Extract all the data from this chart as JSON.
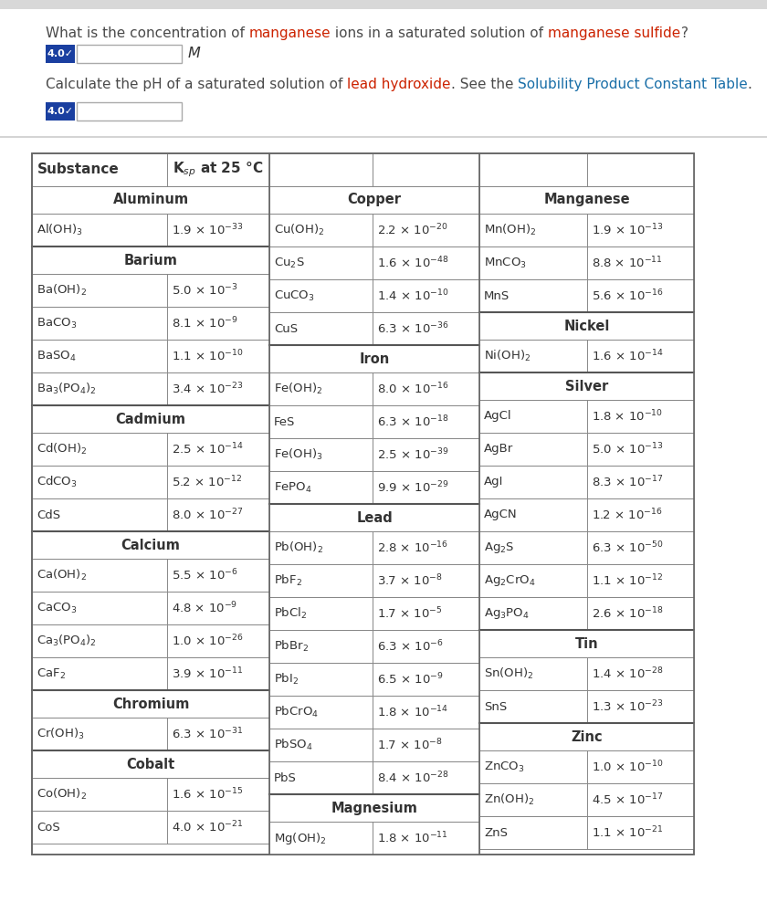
{
  "q1_parts": [
    [
      "What is the concentration of ",
      "#4a4a4a"
    ],
    [
      "manganese",
      "#cc2200"
    ],
    [
      " ions in a saturated solution of ",
      "#4a4a4a"
    ],
    [
      "manganese sulfide",
      "#cc2200"
    ],
    [
      "?",
      "#4a4a4a"
    ]
  ],
  "q2_parts": [
    [
      "Calculate the pH of a saturated solution of ",
      "#4a4a4a"
    ],
    [
      "lead hydroxide",
      "#cc2200"
    ],
    [
      ". See the ",
      "#4a4a4a"
    ],
    [
      "Solubility Product Constant Table",
      "#1a6fa8"
    ],
    [
      ".",
      "#4a4a4a"
    ]
  ],
  "badge_color": "#1a3fa0",
  "badge_text": "4.0✓",
  "col1": {
    "sections": [
      {
        "name": "Aluminum",
        "rows": [
          [
            "Al(OH)$_3$",
            "1.9 × 10$^{-33}$"
          ]
        ]
      },
      {
        "name": "Barium",
        "rows": [
          [
            "Ba(OH)$_2$",
            "5.0 × 10$^{-3}$"
          ],
          [
            "BaCO$_3$",
            "8.1 × 10$^{-9}$"
          ],
          [
            "BaSO$_4$",
            "1.1 × 10$^{-10}$"
          ],
          [
            "Ba$_3$(PO$_4$)$_2$",
            "3.4 × 10$^{-23}$"
          ]
        ]
      },
      {
        "name": "Cadmium",
        "rows": [
          [
            "Cd(OH)$_2$",
            "2.5 × 10$^{-14}$"
          ],
          [
            "CdCO$_3$",
            "5.2 × 10$^{-12}$"
          ],
          [
            "CdS",
            "8.0 × 10$^{-27}$"
          ]
        ]
      },
      {
        "name": "Calcium",
        "rows": [
          [
            "Ca(OH)$_2$",
            "5.5 × 10$^{-6}$"
          ],
          [
            "CaCO$_3$",
            "4.8 × 10$^{-9}$"
          ],
          [
            "Ca$_3$(PO$_4$)$_2$",
            "1.0 × 10$^{-26}$"
          ],
          [
            "CaF$_2$",
            "3.9 × 10$^{-11}$"
          ]
        ]
      },
      {
        "name": "Chromium",
        "rows": [
          [
            "Cr(OH)$_3$",
            "6.3 × 10$^{-31}$"
          ]
        ]
      },
      {
        "name": "Cobalt",
        "rows": [
          [
            "Co(OH)$_2$",
            "1.6 × 10$^{-15}$"
          ],
          [
            "CoS",
            "4.0 × 10$^{-21}$"
          ]
        ]
      }
    ]
  },
  "col2": {
    "sections": [
      {
        "name": "Copper",
        "rows": [
          [
            "Cu(OH)$_2$",
            "2.2 × 10$^{-20}$"
          ],
          [
            "Cu$_2$S",
            "1.6 × 10$^{-48}$"
          ],
          [
            "CuCO$_3$",
            "1.4 × 10$^{-10}$"
          ],
          [
            "CuS",
            "6.3 × 10$^{-36}$"
          ]
        ]
      },
      {
        "name": "Iron",
        "rows": [
          [
            "Fe(OH)$_2$",
            "8.0 × 10$^{-16}$"
          ],
          [
            "FeS",
            "6.3 × 10$^{-18}$"
          ],
          [
            "Fe(OH)$_3$",
            "2.5 × 10$^{-39}$"
          ],
          [
            "FePO$_4$",
            "9.9 × 10$^{-29}$"
          ]
        ]
      },
      {
        "name": "Lead",
        "rows": [
          [
            "Pb(OH)$_2$",
            "2.8 × 10$^{-16}$"
          ],
          [
            "PbF$_2$",
            "3.7 × 10$^{-8}$"
          ],
          [
            "PbCl$_2$",
            "1.7 × 10$^{-5}$"
          ],
          [
            "PbBr$_2$",
            "6.3 × 10$^{-6}$"
          ],
          [
            "PbI$_2$",
            "6.5 × 10$^{-9}$"
          ],
          [
            "PbCrO$_4$",
            "1.8 × 10$^{-14}$"
          ],
          [
            "PbSO$_4$",
            "1.7 × 10$^{-8}$"
          ],
          [
            "PbS",
            "8.4 × 10$^{-28}$"
          ]
        ]
      },
      {
        "name": "Magnesium",
        "rows": [
          [
            "Mg(OH)$_2$",
            "1.8 × 10$^{-11}$"
          ]
        ]
      }
    ]
  },
  "col3": {
    "sections": [
      {
        "name": "Manganese",
        "rows": [
          [
            "Mn(OH)$_2$",
            "1.9 × 10$^{-13}$"
          ],
          [
            "MnCO$_3$",
            "8.8 × 10$^{-11}$"
          ],
          [
            "MnS",
            "5.6 × 10$^{-16}$"
          ]
        ]
      },
      {
        "name": "Nickel",
        "rows": [
          [
            "Ni(OH)$_2$",
            "1.6 × 10$^{-14}$"
          ]
        ]
      },
      {
        "name": "Silver",
        "rows": [
          [
            "AgCl",
            "1.8 × 10$^{-10}$"
          ],
          [
            "AgBr",
            "5.0 × 10$^{-13}$"
          ],
          [
            "AgI",
            "8.3 × 10$^{-17}$"
          ],
          [
            "AgCN",
            "1.2 × 10$^{-16}$"
          ],
          [
            "Ag$_2$S",
            "6.3 × 10$^{-50}$"
          ],
          [
            "Ag$_2$CrO$_4$",
            "1.1 × 10$^{-12}$"
          ],
          [
            "Ag$_3$PO$_4$",
            "2.6 × 10$^{-18}$"
          ]
        ]
      },
      {
        "name": "Tin",
        "rows": [
          [
            "Sn(OH)$_2$",
            "1.4 × 10$^{-28}$"
          ],
          [
            "SnS",
            "1.3 × 10$^{-23}$"
          ]
        ]
      },
      {
        "name": "Zinc",
        "rows": [
          [
            "ZnCO$_3$",
            "1.0 × 10$^{-10}$"
          ],
          [
            "Zn(OH)$_2$",
            "4.5 × 10$^{-17}$"
          ],
          [
            "ZnS",
            "1.1 × 10$^{-21}$"
          ]
        ]
      }
    ]
  }
}
